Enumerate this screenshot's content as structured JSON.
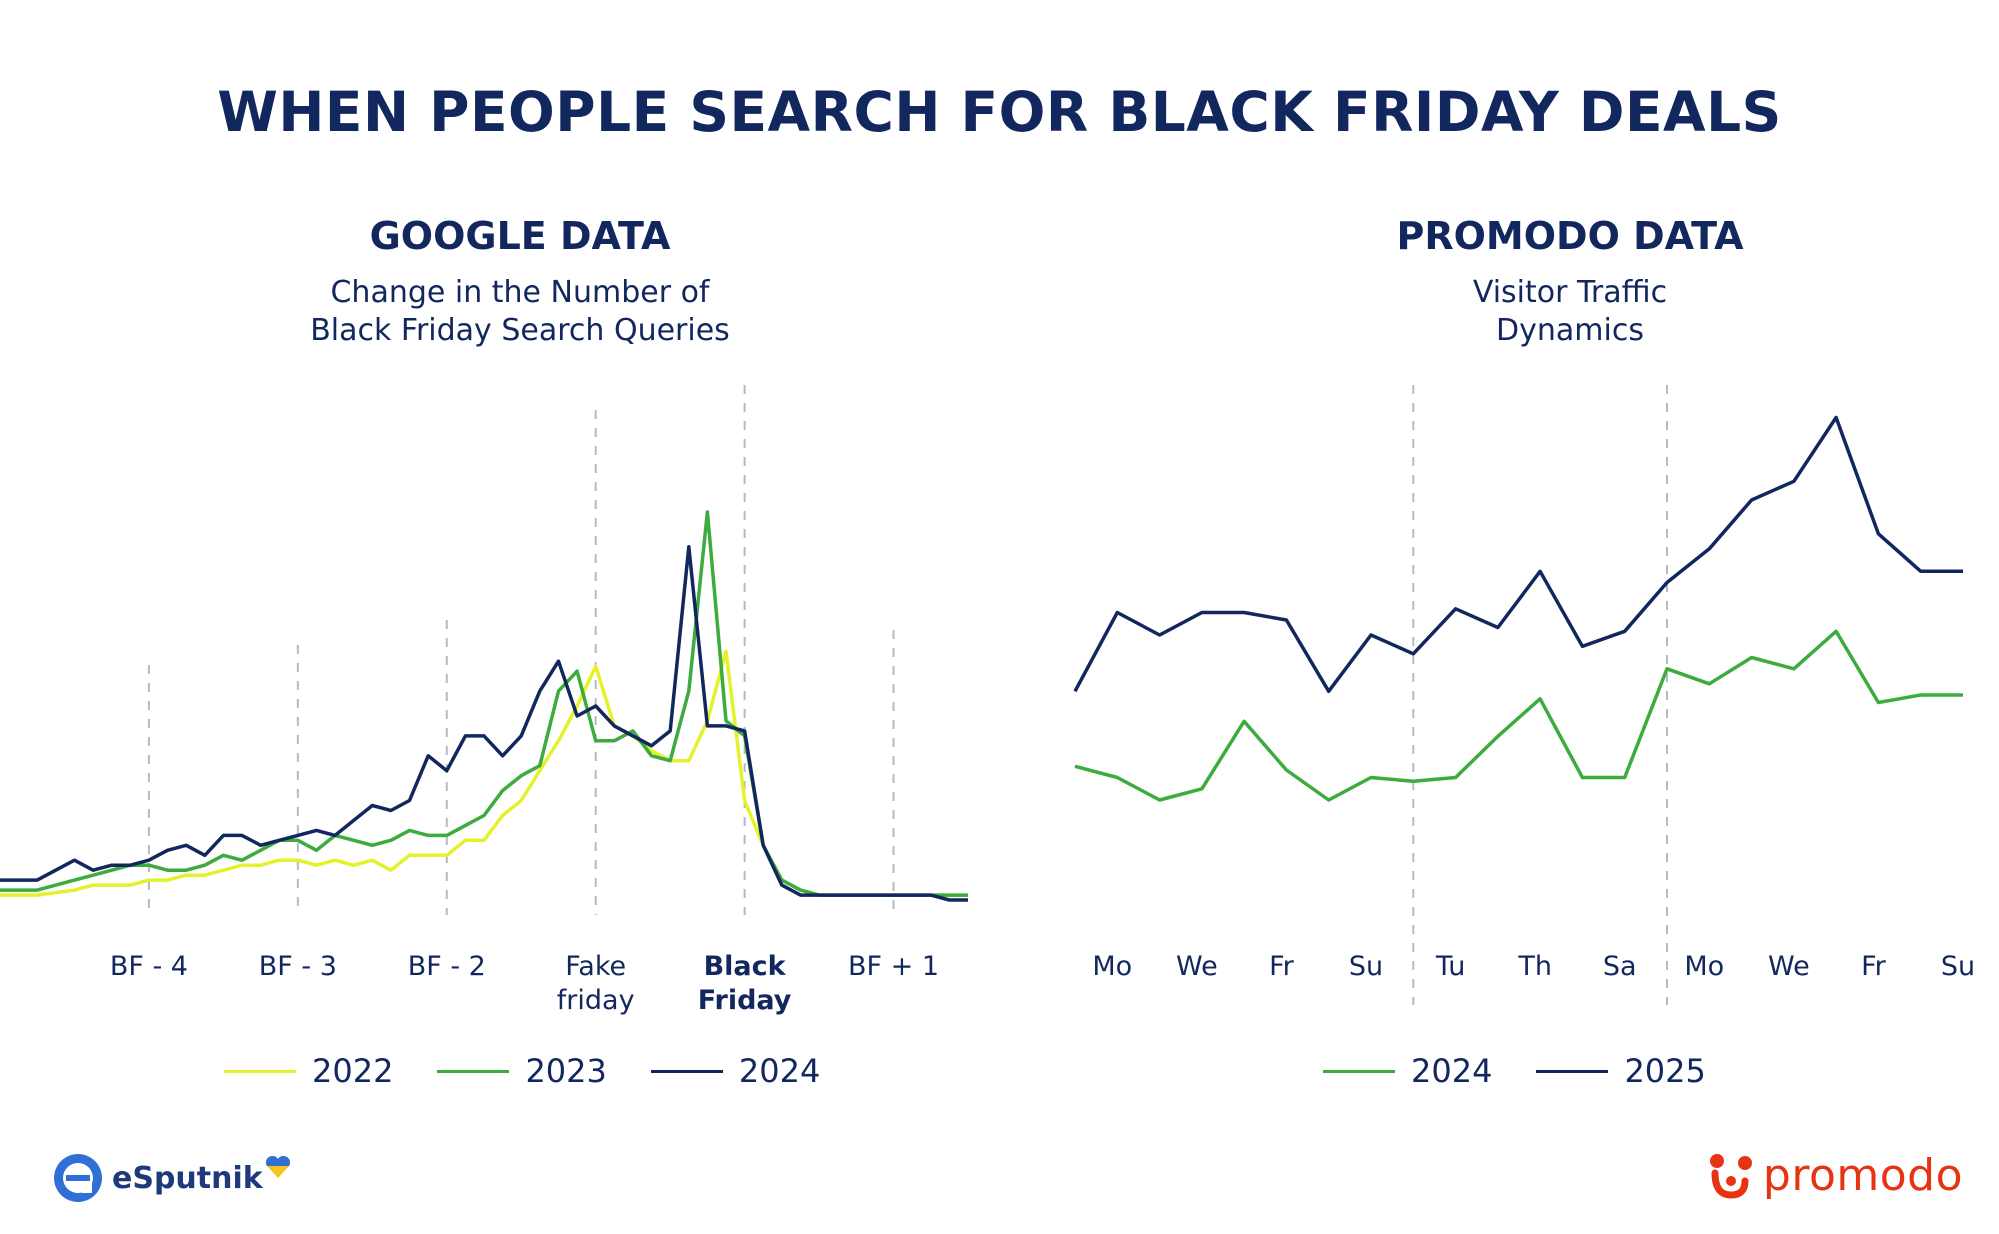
{
  "title": "WHEN PEOPLE SEARCH FOR BLACK FRIDAY DEALS",
  "colors": {
    "navy": "#13275f",
    "y2022": "#e4f22b",
    "y2023": "#3dab3d",
    "y2024": "#13275f",
    "promodo_red": "#e63312"
  },
  "chart_data": [
    {
      "type": "line",
      "title": "GOOGLE DATA",
      "subtitle_line1": "Change in the Number of",
      "subtitle_line2": "Black Friday Search Queries",
      "x_ticks": [
        {
          "x": 4,
          "line1": "BF - 4",
          "line2": "",
          "bold": false
        },
        {
          "x": 12,
          "line1": "BF - 3",
          "line2": "",
          "bold": false
        },
        {
          "x": 20,
          "line1": "BF - 2",
          "line2": "",
          "bold": false
        },
        {
          "x": 28,
          "line1": "Fake",
          "line2": "friday",
          "bold": false
        },
        {
          "x": 36,
          "line1": "Black",
          "line2": "Friday",
          "bold": true
        },
        {
          "x": 44,
          "line1": "BF + 1",
          "line2": "",
          "bold": false
        }
      ],
      "xlim": [
        -4,
        48
      ],
      "ylim": [
        0,
        100
      ],
      "grid": "vertical dashed at ticks",
      "series": [
        {
          "name": "2022",
          "color": "#e4f22b",
          "x": [
            -4,
            -2,
            0,
            1,
            2,
            3,
            4,
            5,
            6,
            7,
            8,
            9,
            10,
            11,
            12,
            13,
            14,
            15,
            16,
            17,
            18,
            19,
            20,
            21,
            22,
            23,
            24,
            25,
            26,
            27,
            28,
            29,
            30,
            31,
            32,
            33,
            34,
            35,
            36,
            37,
            38,
            39,
            40,
            41,
            42,
            43,
            44,
            45,
            46,
            47,
            48
          ],
          "values": [
            3,
            3,
            4,
            5,
            5,
            5,
            6,
            6,
            7,
            7,
            8,
            9,
            9,
            10,
            10,
            9,
            10,
            9,
            10,
            8,
            11,
            11,
            11,
            14,
            14,
            19,
            22,
            28,
            34,
            41,
            49,
            37,
            35,
            32,
            30,
            30,
            38,
            52,
            22,
            13,
            6,
            4,
            3,
            3,
            3,
            3,
            3,
            3,
            3,
            3,
            3
          ]
        },
        {
          "name": "2023",
          "color": "#3dab3d",
          "x": [
            -4,
            -2,
            0,
            1,
            2,
            3,
            4,
            5,
            6,
            7,
            8,
            9,
            10,
            11,
            12,
            13,
            14,
            15,
            16,
            17,
            18,
            19,
            20,
            21,
            22,
            23,
            24,
            25,
            26,
            27,
            28,
            29,
            30,
            31,
            32,
            33,
            34,
            35,
            36,
            37,
            38,
            39,
            40,
            41,
            42,
            43,
            44,
            45,
            46,
            47,
            48
          ],
          "values": [
            4,
            4,
            6,
            7,
            8,
            9,
            9,
            8,
            8,
            9,
            11,
            10,
            12,
            14,
            14,
            12,
            15,
            14,
            13,
            14,
            16,
            15,
            15,
            17,
            19,
            24,
            27,
            29,
            44,
            48,
            34,
            34,
            36,
            31,
            30,
            44,
            80,
            38,
            35,
            13,
            6,
            4,
            3,
            3,
            3,
            3,
            3,
            3,
            3,
            3,
            3
          ]
        },
        {
          "name": "2024",
          "color": "#13275f",
          "x": [
            -4,
            -2,
            0,
            1,
            2,
            3,
            4,
            5,
            6,
            7,
            8,
            9,
            10,
            11,
            12,
            13,
            14,
            15,
            16,
            17,
            18,
            19,
            20,
            21,
            22,
            23,
            24,
            25,
            26,
            27,
            28,
            29,
            30,
            31,
            32,
            33,
            34,
            35,
            36,
            37,
            38,
            39,
            40,
            41,
            42,
            43,
            44,
            45,
            46,
            47,
            48
          ],
          "values": [
            6,
            6,
            10,
            8,
            9,
            9,
            10,
            12,
            13,
            11,
            15,
            15,
            13,
            14,
            15,
            16,
            15,
            18,
            21,
            20,
            22,
            31,
            28,
            35,
            35,
            31,
            35,
            44,
            50,
            39,
            41,
            37,
            35,
            33,
            36,
            73,
            37,
            37,
            36,
            13,
            5,
            3,
            3,
            3,
            3,
            3,
            3,
            3,
            3,
            2,
            2
          ]
        }
      ]
    },
    {
      "type": "line",
      "title": "PROMODO DATA",
      "subtitle_line1": "Visitor Traffic",
      "subtitle_line2": "Dynamics",
      "categories": [
        "Mo",
        "We",
        "Fr",
        "Su",
        "Tu",
        "Th",
        "Sa",
        "Mo",
        "We",
        "Fr",
        "Su"
      ],
      "category_x": [
        1,
        3,
        5,
        7,
        9,
        11,
        13,
        15,
        17,
        19,
        21
      ],
      "x_separators": [
        8,
        14
      ],
      "xlim": [
        0,
        21
      ],
      "ylim": [
        0,
        100
      ],
      "series": [
        {
          "name": "2024",
          "color": "#3dab3d",
          "x": [
            0,
            1,
            2,
            3,
            4,
            5,
            6,
            7,
            8,
            9,
            10,
            11,
            12,
            13,
            14,
            15,
            16,
            17,
            18,
            19,
            20,
            21
          ],
          "values": [
            25,
            22,
            16,
            19,
            37,
            24,
            16,
            22,
            21,
            22,
            33,
            43,
            22,
            22,
            51,
            47,
            54,
            51,
            61,
            42,
            44,
            44
          ]
        },
        {
          "name": "2025",
          "color": "#13275f",
          "x": [
            0,
            1,
            2,
            3,
            4,
            5,
            6,
            7,
            8,
            9,
            10,
            11,
            12,
            13,
            14,
            15,
            16,
            17,
            18,
            19,
            20,
            21
          ],
          "values": [
            45,
            66,
            60,
            66,
            66,
            64,
            45,
            60,
            55,
            67,
            62,
            77,
            57,
            61,
            74,
            83,
            96,
            101,
            118,
            87,
            77,
            77
          ]
        }
      ]
    }
  ],
  "legend_left": [
    "2022",
    "2023",
    "2024"
  ],
  "legend_right": [
    "2024",
    "2025"
  ],
  "logos": {
    "left": "eSputnik",
    "right": "promodo"
  }
}
